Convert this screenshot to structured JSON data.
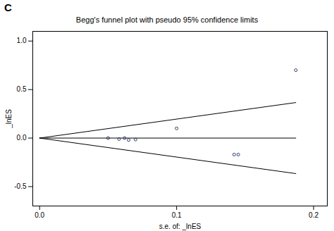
{
  "chart_data": {
    "type": "scatter",
    "panel": "C",
    "title": "Begg's funnel plot with pseudo 95% confidence limits",
    "x_label": "s.e. of: _lnES",
    "y_label": "_lnES",
    "x": [
      0.05,
      0.058,
      0.062,
      0.065,
      0.07,
      0.1,
      0.142,
      0.145,
      0.187
    ],
    "values": [
      0.0,
      -0.01,
      0.0,
      -0.02,
      -0.015,
      0.1,
      -0.17,
      -0.17,
      0.7
    ],
    "marker": "circle",
    "color": "#1f2d5c",
    "limits": [
      {
        "x": [
          0,
          0.187
        ],
        "values": [
          0,
          0.366
        ]
      },
      {
        "x": [
          0,
          0.187
        ],
        "values": [
          0,
          -0.366
        ]
      },
      {
        "x": [
          0,
          0.187
        ],
        "values": [
          0,
          0
        ]
      }
    ],
    "xlim": [
      -0.005,
      0.21
    ],
    "ylim": [
      -0.7,
      1.1
    ],
    "xticks": [
      {
        "value": 0,
        "label": "0.0"
      },
      0.1,
      0.2
    ],
    "yticks": [
      -0.5,
      {
        "value": 0,
        "label": "0.0"
      },
      0.5,
      {
        "value": 1,
        "label": "1.0"
      }
    ],
    "grid": false
  }
}
